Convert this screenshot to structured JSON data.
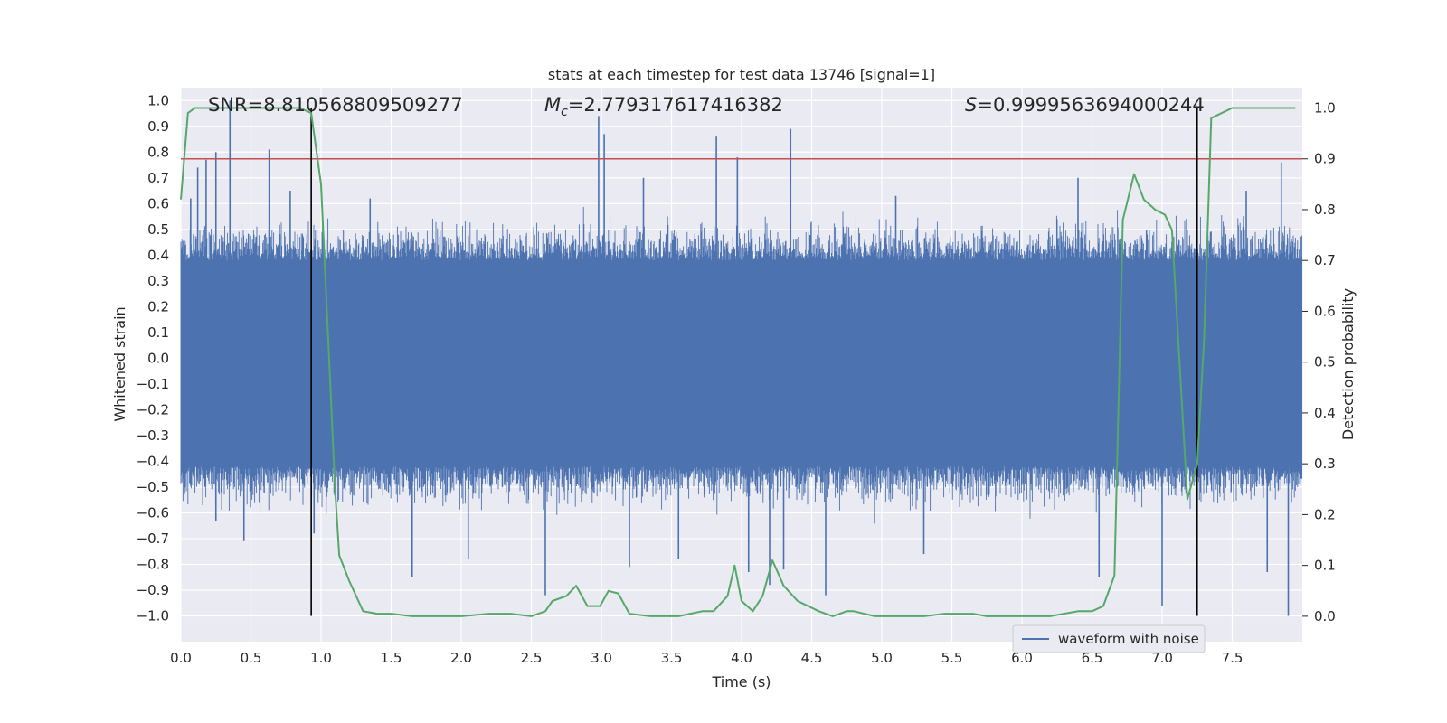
{
  "chart_data": {
    "type": "line",
    "title": "stats at each timestep for test data 13746 [signal=1]",
    "xlabel": "Time (s)",
    "ylabel": "Whitened strain",
    "y2label": "Detection probability",
    "xlim": [
      0.0,
      8.0
    ],
    "ylim": [
      -1.1,
      1.05
    ],
    "y2lim": [
      -0.05,
      1.04
    ],
    "xticks": [
      "0.0",
      "0.5",
      "1.0",
      "1.5",
      "2.0",
      "2.5",
      "3.0",
      "3.5",
      "4.0",
      "4.5",
      "5.0",
      "5.5",
      "6.0",
      "6.5",
      "7.0",
      "7.5"
    ],
    "yticks": [
      "1.0",
      "0.9",
      "0.8",
      "0.7",
      "0.6",
      "0.5",
      "0.4",
      "0.3",
      "0.2",
      "0.1",
      "0.0",
      "−0.1",
      "−0.2",
      "−0.3",
      "−0.4",
      "−0.5",
      "−0.6",
      "−0.7",
      "−0.8",
      "−0.9",
      "−1.0"
    ],
    "y2ticks": [
      "1.0",
      "0.9",
      "0.8",
      "0.7",
      "0.6",
      "0.5",
      "0.4",
      "0.3",
      "0.2",
      "0.1",
      "0.0"
    ],
    "grid": true,
    "legend": {
      "position": "lower-right",
      "entries": [
        "waveform with noise"
      ]
    },
    "annotations": {
      "snr": "SNR=8.810568809509277",
      "mc_symbol": "M",
      "mc_sub": "c",
      "mc_value": "=2.779317617416382",
      "s_symbol": "S",
      "s_value": "=0.9999563694000244"
    },
    "threshold": {
      "y2": 0.9,
      "color": "#c44e52"
    },
    "vlines": [
      0.93,
      7.25
    ],
    "series": [
      {
        "name": "waveform with noise",
        "axis": "left",
        "color": "#4c72b0",
        "rendering": "dense noise band",
        "band_core": [
          -0.42,
          0.38
        ],
        "peaks": [
          {
            "x": 0.07,
            "y": 0.62
          },
          {
            "x": 0.12,
            "y": 0.74
          },
          {
            "x": 0.18,
            "y": 0.77
          },
          {
            "x": 0.25,
            "y": 0.8
          },
          {
            "x": 0.35,
            "y": 1.0
          },
          {
            "x": 0.63,
            "y": 0.81
          },
          {
            "x": 0.78,
            "y": 0.65
          },
          {
            "x": 1.35,
            "y": 0.62
          },
          {
            "x": 2.98,
            "y": 0.94
          },
          {
            "x": 3.02,
            "y": 0.87
          },
          {
            "x": 3.3,
            "y": 0.7
          },
          {
            "x": 3.82,
            "y": 0.86
          },
          {
            "x": 3.97,
            "y": 0.78
          },
          {
            "x": 4.35,
            "y": 0.89
          },
          {
            "x": 5.1,
            "y": 0.63
          },
          {
            "x": 6.4,
            "y": 0.7
          },
          {
            "x": 7.6,
            "y": 0.65
          },
          {
            "x": 7.85,
            "y": 0.76
          }
        ],
        "troughs": [
          {
            "x": 0.25,
            "y": -0.63
          },
          {
            "x": 0.45,
            "y": -0.71
          },
          {
            "x": 0.95,
            "y": -0.68
          },
          {
            "x": 1.65,
            "y": -0.85
          },
          {
            "x": 2.05,
            "y": -0.78
          },
          {
            "x": 2.6,
            "y": -0.92
          },
          {
            "x": 3.2,
            "y": -0.81
          },
          {
            "x": 3.55,
            "y": -0.78
          },
          {
            "x": 4.05,
            "y": -0.83
          },
          {
            "x": 4.2,
            "y": -0.88
          },
          {
            "x": 4.3,
            "y": -0.82
          },
          {
            "x": 4.6,
            "y": -0.92
          },
          {
            "x": 5.3,
            "y": -0.76
          },
          {
            "x": 6.55,
            "y": -0.85
          },
          {
            "x": 7.0,
            "y": -0.96
          },
          {
            "x": 7.75,
            "y": -0.83
          },
          {
            "x": 7.9,
            "y": -1.0
          }
        ]
      },
      {
        "name": "",
        "axis": "right",
        "color": "#55a868",
        "x": [
          0.0,
          0.05,
          0.1,
          0.2,
          0.3,
          0.5,
          0.7,
          0.85,
          0.93,
          1.0,
          1.05,
          1.1,
          1.13,
          1.2,
          1.3,
          1.4,
          1.5,
          1.65,
          1.8,
          2.0,
          2.2,
          2.35,
          2.5,
          2.6,
          2.65,
          2.75,
          2.82,
          2.9,
          2.99,
          3.05,
          3.12,
          3.2,
          3.35,
          3.55,
          3.72,
          3.8,
          3.9,
          3.95,
          4.0,
          4.08,
          4.15,
          4.22,
          4.3,
          4.4,
          4.55,
          4.65,
          4.75,
          4.8,
          4.95,
          5.1,
          5.3,
          5.45,
          5.55,
          5.65,
          5.75,
          5.95,
          6.2,
          6.4,
          6.5,
          6.58,
          6.66,
          6.72,
          6.8,
          6.87,
          6.95,
          7.02,
          7.07,
          7.13,
          7.18,
          7.25,
          7.3,
          7.35,
          7.5,
          7.95
        ],
        "y": [
          0.82,
          0.99,
          1.0,
          1.0,
          1.0,
          1.0,
          1.0,
          1.0,
          0.99,
          0.85,
          0.55,
          0.25,
          0.12,
          0.07,
          0.01,
          0.005,
          0.005,
          0.0,
          0.0,
          0.0,
          0.005,
          0.005,
          0.0,
          0.01,
          0.03,
          0.04,
          0.06,
          0.02,
          0.02,
          0.05,
          0.045,
          0.005,
          0.0,
          0.0,
          0.01,
          0.01,
          0.04,
          0.1,
          0.03,
          0.01,
          0.04,
          0.11,
          0.06,
          0.03,
          0.01,
          0.0,
          0.01,
          0.01,
          0.0,
          0.0,
          0.0,
          0.005,
          0.005,
          0.005,
          0.0,
          0.0,
          0.0,
          0.01,
          0.01,
          0.02,
          0.08,
          0.78,
          0.87,
          0.82,
          0.8,
          0.79,
          0.76,
          0.47,
          0.23,
          0.3,
          0.55,
          0.98,
          1.0,
          1.0
        ]
      }
    ]
  }
}
